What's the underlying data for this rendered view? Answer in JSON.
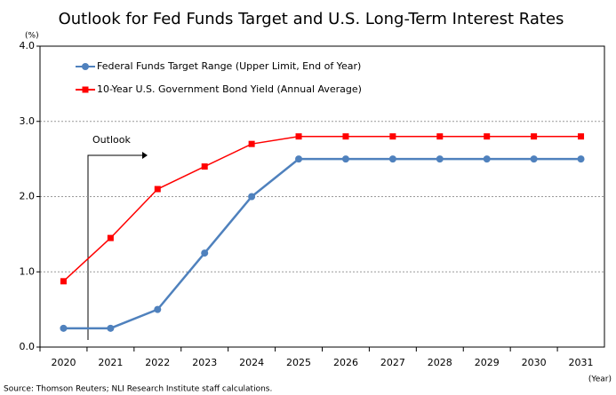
{
  "chart_data": {
    "type": "line",
    "title": "Outlook for Fed Funds Target and U.S. Long-Term Interest Rates",
    "y_unit": "(%)",
    "x_unit": "(Year)",
    "annotation": "Outlook",
    "source": "Source: Thomson Reuters; NLI Research Institute staff calculations.",
    "categories": [
      "2020",
      "2021",
      "2022",
      "2023",
      "2024",
      "2025",
      "2026",
      "2027",
      "2028",
      "2029",
      "2030",
      "2031"
    ],
    "series": [
      {
        "name": "Federal Funds Target Range (Upper Limit, End of Year)",
        "color": "#4f81bd",
        "marker": "circle",
        "values": [
          0.25,
          0.25,
          0.5,
          1.25,
          2.0,
          2.5,
          2.5,
          2.5,
          2.5,
          2.5,
          2.5,
          2.5
        ]
      },
      {
        "name": "10-Year U.S. Government Bond Yield (Annual Average)",
        "color": "#ff0000",
        "marker": "square",
        "values": [
          0.875,
          1.45,
          2.1,
          2.4,
          2.7,
          2.8,
          2.8,
          2.8,
          2.8,
          2.8,
          2.8,
          2.8
        ]
      }
    ],
    "ylim": [
      0,
      4
    ],
    "yticks": [
      {
        "value": 0,
        "label": "0.0"
      },
      {
        "value": 1,
        "label": "1.0"
      },
      {
        "value": 2,
        "label": "2.0"
      },
      {
        "value": 3,
        "label": "3.0"
      },
      {
        "value": 4,
        "label": "4.0"
      }
    ],
    "grid": true,
    "legend": "upper left"
  }
}
